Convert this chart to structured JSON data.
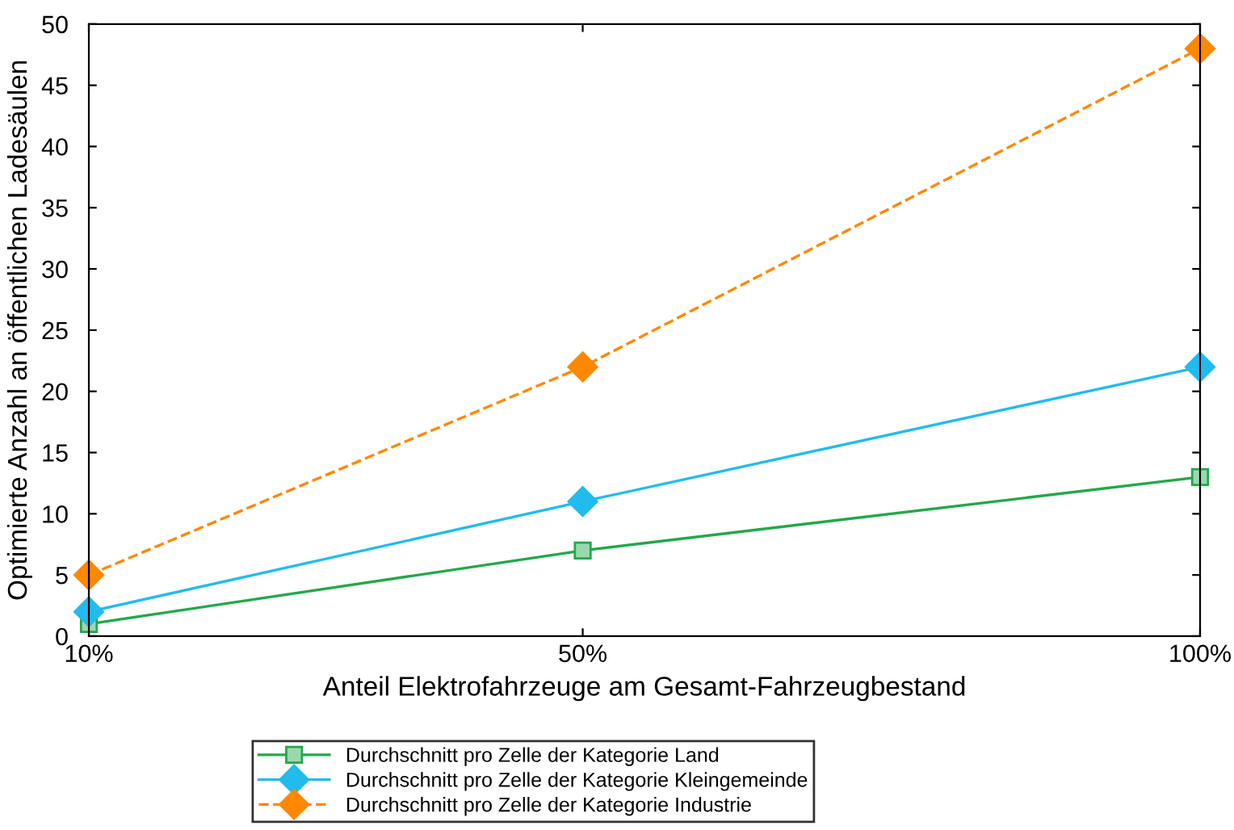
{
  "chart_data": {
    "type": "line",
    "xlabel": "Anteil Elektrofahrzeuge am Gesamt-Fahrzeugbestand",
    "ylabel": "Optimierte Anzahl an öffentlichen Ladesäulen",
    "x": [
      10,
      50,
      100
    ],
    "xlim": [
      10,
      100
    ],
    "xticks": [
      {
        "value": 10,
        "label": "10%"
      },
      {
        "value": 50,
        "label": "50%"
      },
      {
        "value": 100,
        "label": "100%"
      }
    ],
    "ylim": [
      0,
      50
    ],
    "yticks": [
      0,
      5,
      10,
      15,
      20,
      25,
      30,
      35,
      40,
      45,
      50
    ],
    "grid": false,
    "legend": "bottom",
    "series": [
      {
        "name": "Durchschnitt pro Zelle der Kategorie Land",
        "color": "#22a84a",
        "values": [
          1,
          7,
          13
        ],
        "marker": "square",
        "line_style": "solid"
      },
      {
        "name": "Durchschnitt pro Zelle der Kategorie Kleingemeinde",
        "color": "#22bbee",
        "values": [
          2,
          11,
          22
        ],
        "marker": "diamond",
        "line_style": "solid"
      },
      {
        "name": "Durchschnitt pro Zelle der Kategorie Industrie",
        "color": "#ff8800",
        "values": [
          5,
          22,
          48
        ],
        "marker": "diamond",
        "line_style": "dashed"
      }
    ]
  }
}
